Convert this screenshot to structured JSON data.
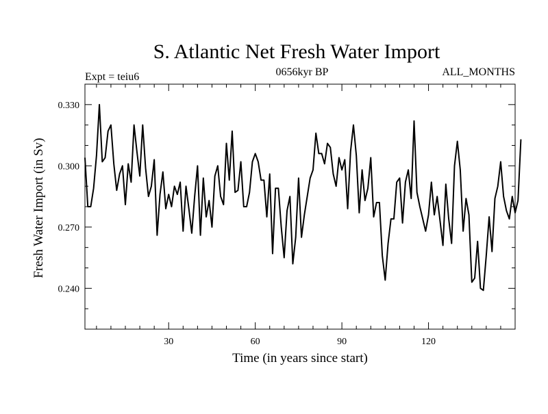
{
  "chart_data": {
    "type": "line",
    "title": "S. Atlantic Net Fresh Water Import",
    "subtitle_left": "Expt = teiu6",
    "subtitle_center": "0656kyr BP",
    "subtitle_right": "ALL_MONTHS",
    "xlabel": "Time (in years since start)",
    "ylabel": "Fresh Water Import (in Sv)",
    "xlim": [
      1,
      150
    ],
    "ylim": [
      0.22,
      0.34
    ],
    "xticks": [
      30,
      60,
      90,
      120
    ],
    "xtick_labels": [
      "30",
      "60",
      "90",
      "120"
    ],
    "yticks": [
      0.24,
      0.27,
      0.3,
      0.33
    ],
    "ytick_labels": [
      "0.240",
      "0.270",
      "0.300",
      "0.330"
    ],
    "x_minor_step": 5,
    "y_minor_step": 0.01,
    "series": [
      {
        "name": "Fresh Water Import",
        "color": "#000000",
        "values": [
          0.304,
          0.28,
          0.28,
          0.289,
          0.305,
          0.33,
          0.302,
          0.304,
          0.317,
          0.32,
          0.301,
          0.288,
          0.296,
          0.3,
          0.281,
          0.301,
          0.292,
          0.32,
          0.307,
          0.295,
          0.32,
          0.299,
          0.285,
          0.29,
          0.303,
          0.266,
          0.286,
          0.297,
          0.279,
          0.286,
          0.28,
          0.29,
          0.286,
          0.292,
          0.268,
          0.29,
          0.279,
          0.267,
          0.285,
          0.3,
          0.266,
          0.294,
          0.275,
          0.283,
          0.27,
          0.295,
          0.3,
          0.285,
          0.281,
          0.311,
          0.293,
          0.317,
          0.287,
          0.288,
          0.302,
          0.28,
          0.28,
          0.287,
          0.302,
          0.306,
          0.302,
          0.293,
          0.293,
          0.275,
          0.296,
          0.257,
          0.289,
          0.289,
          0.27,
          0.255,
          0.278,
          0.285,
          0.252,
          0.265,
          0.294,
          0.265,
          0.276,
          0.285,
          0.294,
          0.298,
          0.316,
          0.306,
          0.306,
          0.301,
          0.311,
          0.309,
          0.296,
          0.29,
          0.304,
          0.298,
          0.303,
          0.279,
          0.307,
          0.32,
          0.305,
          0.277,
          0.298,
          0.283,
          0.289,
          0.304,
          0.275,
          0.282,
          0.282,
          0.256,
          0.244,
          0.262,
          0.274,
          0.274,
          0.292,
          0.294,
          0.272,
          0.292,
          0.298,
          0.284,
          0.322,
          0.287,
          0.28,
          0.274,
          0.268,
          0.276,
          0.292,
          0.276,
          0.285,
          0.273,
          0.261,
          0.291,
          0.274,
          0.262,
          0.3,
          0.312,
          0.298,
          0.268,
          0.284,
          0.276,
          0.243,
          0.245,
          0.263,
          0.24,
          0.239,
          0.256,
          0.275,
          0.258,
          0.284,
          0.29,
          0.302,
          0.285,
          0.278,
          0.274,
          0.285,
          0.277,
          0.283,
          0.313
        ]
      }
    ]
  }
}
